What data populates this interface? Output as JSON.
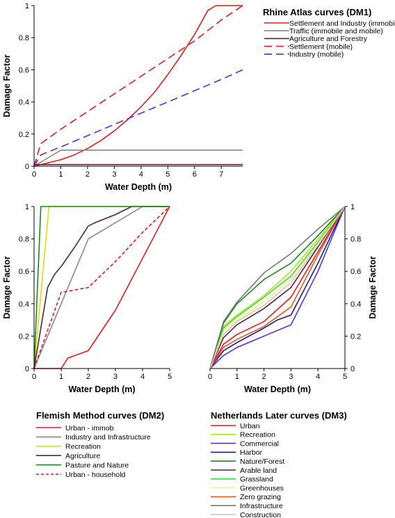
{
  "chart_data": [
    {
      "id": "dm1",
      "type": "line",
      "title": "",
      "xlabel": "Water Depth (m)",
      "ylabel": "Damage Factor",
      "xlim": [
        0,
        7.8
      ],
      "ylim": [
        0,
        1
      ],
      "xticks": [
        0,
        1,
        2,
        3,
        4,
        5,
        6,
        7
      ],
      "yticks": [
        0,
        0.2,
        0.4,
        0.6,
        0.8,
        1
      ],
      "ytick_labels": [
        "0",
        "0.2",
        "0.4",
        "0.6",
        "0.8",
        "1"
      ],
      "legend": {
        "title": "Rhine Atlas curves (DM1)",
        "placement": "right",
        "entries": [
          "Settlement and Industry (immobile",
          "Traffic (immobile and mobile)",
          "Agriculture and Forestry",
          "Settlement (mobile)",
          "Industry (mobile)"
        ]
      },
      "series": [
        {
          "name": "Settlement and Industry (immobile",
          "color": "#e41a1c",
          "dash": "solid",
          "x": [
            0,
            0.5,
            1,
            1.5,
            2,
            2.5,
            3,
            3.5,
            4,
            4.5,
            5,
            5.5,
            6,
            6.5,
            6.8,
            7,
            7.5,
            7.8
          ],
          "y": [
            0,
            0.02,
            0.04,
            0.07,
            0.11,
            0.16,
            0.22,
            0.29,
            0.37,
            0.46,
            0.57,
            0.69,
            0.82,
            0.97,
            1,
            1,
            1,
            1
          ]
        },
        {
          "name": "Traffic (immobile and mobile)",
          "color": "#888888",
          "dash": "solid",
          "x": [
            0,
            1,
            7.8
          ],
          "y": [
            0,
            0.1,
            0.1
          ]
        },
        {
          "name": "Agriculture and Forestry",
          "color": "#5a1f3a",
          "dash": "solid",
          "x": [
            0,
            0.05,
            7.8
          ],
          "y": [
            0,
            0.01,
            0.01
          ]
        },
        {
          "name": "Settlement (mobile)",
          "color": "#e41a1c",
          "dash": "dashed",
          "x": [
            0,
            0.25,
            1,
            2,
            3,
            4,
            5,
            6,
            7,
            7.8
          ],
          "y": [
            0,
            0.14,
            0.23,
            0.34,
            0.45,
            0.56,
            0.67,
            0.78,
            0.91,
            1
          ]
        },
        {
          "name": "Industry (mobile)",
          "color": "#5b2be0",
          "dash": "dashed",
          "x": [
            0,
            0.25,
            1,
            2,
            3,
            4,
            5,
            6,
            7,
            7.8
          ],
          "y": [
            0,
            0.07,
            0.12,
            0.19,
            0.26,
            0.33,
            0.4,
            0.47,
            0.54,
            0.6
          ]
        }
      ]
    },
    {
      "id": "dm2",
      "type": "line",
      "title": "",
      "xlabel": "Water Depth (m)",
      "ylabel": "Damage Factor",
      "xlim": [
        0,
        5
      ],
      "ylim": [
        0,
        1
      ],
      "xticks": [
        0,
        1,
        2,
        3,
        4,
        5
      ],
      "yticks": [
        0,
        0.2,
        0.4,
        0.6,
        0.8,
        1
      ],
      "ytick_labels": [
        "0",
        "0.2",
        "0.4",
        "0.6",
        "0.8",
        "1"
      ],
      "legend": {
        "title": "Flemish Method curves (DM2)",
        "placement": "below",
        "entries": [
          "Urban - immob",
          "Industry and Infrastructure",
          "Recreation",
          "Agriculture",
          "Pasture and Nature",
          "Urban - household"
        ]
      },
      "series": [
        {
          "name": "Urban - immob",
          "color": "#e41a1c",
          "dash": "solid",
          "x": [
            0,
            1,
            1.25,
            2,
            3,
            4,
            5
          ],
          "y": [
            0,
            0,
            0.065,
            0.11,
            0.36,
            0.68,
            1
          ]
        },
        {
          "name": "Industry and Infrastructure",
          "color": "#888888",
          "dash": "solid",
          "x": [
            0,
            2,
            4,
            5
          ],
          "y": [
            0,
            0.8,
            1,
            1
          ]
        },
        {
          "name": "Recreation",
          "color": "#dde000",
          "dash": "solid",
          "x": [
            0,
            0.55,
            5
          ],
          "y": [
            0,
            1,
            1
          ]
        },
        {
          "name": "Agriculture",
          "color": "#5a1f3a",
          "dash": "solid",
          "x": [
            0,
            0.5,
            0.75,
            1,
            1.5,
            2,
            2.25,
            3,
            3.6,
            5
          ],
          "y": [
            0,
            0.5,
            0.58,
            0.63,
            0.75,
            0.88,
            0.9,
            0.95,
            1,
            1
          ]
        },
        {
          "name": "Pasture and Nature",
          "color": "#1a8a1a",
          "dash": "solid",
          "x": [
            0,
            0.25,
            5
          ],
          "y": [
            0,
            1,
            1
          ]
        },
        {
          "name": "Urban - household",
          "color": "#e41a1c",
          "dash": "dashed",
          "x": [
            0,
            1,
            2,
            3,
            4,
            5
          ],
          "y": [
            0,
            0.47,
            0.5,
            0.66,
            0.84,
            1
          ]
        }
      ]
    },
    {
      "id": "dm3",
      "type": "line",
      "title": "",
      "xlabel": "Water Depth (m)",
      "ylabel": "Damage Factor",
      "xlim": [
        0,
        5
      ],
      "ylim": [
        0,
        1
      ],
      "xticks": [
        0,
        1,
        2,
        3,
        4,
        5
      ],
      "yticks": [
        0,
        0.2,
        0.4,
        0.6,
        0.8,
        1
      ],
      "ytick_labels": [
        "0",
        "0.2",
        "0.4",
        "0.6",
        "0.8",
        "1"
      ],
      "yaxis_side": "right",
      "legend": {
        "title": "Netherlands Later curves (DM3)",
        "placement": "below",
        "entries": [
          "Urban",
          "Recreation",
          "Commercial",
          "Harbor",
          "Nature/Forest",
          "Arable land",
          "Grassland",
          "Greenhouses",
          "Zero grazing",
          "Infrastructure",
          "Construction"
        ]
      },
      "series": [
        {
          "name": "Urban",
          "color": "#e41a1c",
          "dash": "solid",
          "x": [
            0,
            0.5,
            1,
            2,
            3,
            4,
            5
          ],
          "y": [
            0,
            0.15,
            0.21,
            0.29,
            0.44,
            0.72,
            1
          ]
        },
        {
          "name": "Recreation",
          "color": "#a8e61a",
          "dash": "solid",
          "x": [
            0,
            0.5,
            1,
            2,
            3,
            4,
            5
          ],
          "y": [
            0,
            0.26,
            0.33,
            0.45,
            0.6,
            0.8,
            1
          ]
        },
        {
          "name": "Commercial",
          "color": "#5b2be0",
          "dash": "solid",
          "x": [
            0,
            0.5,
            1,
            2,
            3,
            4,
            5
          ],
          "y": [
            0,
            0.08,
            0.13,
            0.2,
            0.27,
            0.6,
            1
          ]
        },
        {
          "name": "Harbor",
          "color": "#1a1a8a",
          "dash": "solid",
          "x": [
            0,
            0.5,
            1,
            2,
            2.5,
            3,
            4,
            5
          ],
          "y": [
            0,
            0.11,
            0.16,
            0.25,
            0.3,
            0.33,
            0.65,
            1
          ]
        },
        {
          "name": "Nature/Forest",
          "color": "#1a8a1a",
          "dash": "solid",
          "x": [
            0,
            0.5,
            1,
            2,
            3,
            4,
            5
          ],
          "y": [
            0,
            0.28,
            0.4,
            0.55,
            0.65,
            0.82,
            1
          ]
        },
        {
          "name": "Arable land",
          "color": "#5a1f3a",
          "dash": "solid",
          "x": [
            0,
            0.5,
            1,
            2,
            3,
            4,
            5
          ],
          "y": [
            0,
            0.19,
            0.27,
            0.37,
            0.5,
            0.75,
            1
          ]
        },
        {
          "name": "Grassland",
          "color": "#3fd63f",
          "dash": "solid",
          "x": [
            0,
            0.5,
            1,
            2,
            3,
            4,
            5
          ],
          "y": [
            0,
            0.25,
            0.32,
            0.44,
            0.57,
            0.78,
            1
          ]
        },
        {
          "name": "Greenhouses",
          "color": "#f0f07a",
          "dash": "solid",
          "x": [
            0,
            0.5,
            1,
            2,
            3,
            4,
            5
          ],
          "y": [
            0,
            0.23,
            0.3,
            0.41,
            0.55,
            0.77,
            1
          ]
        },
        {
          "name": "Zero grazing",
          "color": "#e05a1a",
          "dash": "solid",
          "x": [
            0,
            0.5,
            1,
            2,
            3,
            4,
            5
          ],
          "y": [
            0,
            0.13,
            0.18,
            0.26,
            0.38,
            0.7,
            1
          ]
        },
        {
          "name": "Infrastructure",
          "color": "#777777",
          "dash": "solid",
          "x": [
            0,
            0.5,
            1,
            2,
            3,
            4,
            5
          ],
          "y": [
            0,
            0.29,
            0.41,
            0.59,
            0.71,
            0.86,
            1
          ]
        },
        {
          "name": "Construction",
          "color": "#c8c8c8",
          "dash": "solid",
          "x": [
            0,
            0.5,
            1,
            2,
            3,
            4,
            5
          ],
          "y": [
            0,
            0.21,
            0.29,
            0.39,
            0.53,
            0.76,
            1
          ]
        }
      ]
    }
  ]
}
